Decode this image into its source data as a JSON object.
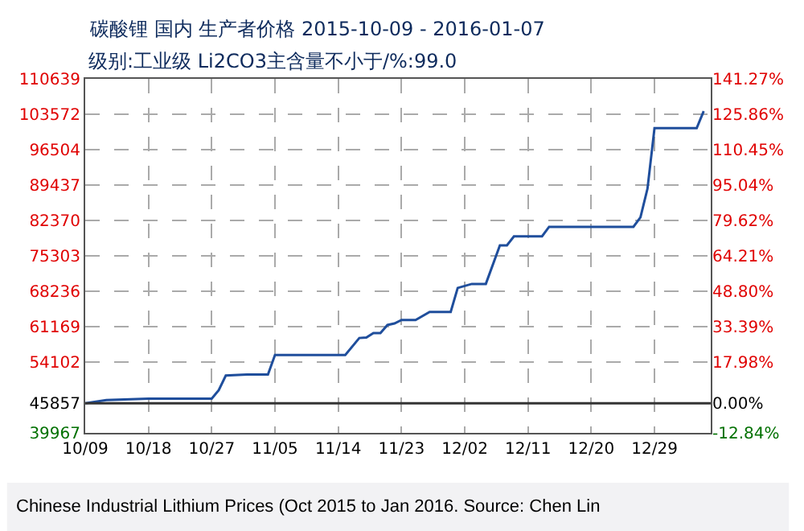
{
  "chart_data": {
    "type": "line",
    "title": "碳酸锂 国内 生产者价格 2015-10-09 - 2016-01-07",
    "subtitle": "级别:工业级 Li2CO3主含量不小于/%:99.0",
    "x": [
      "2015-10-09",
      "2015-10-12",
      "2015-10-18",
      "2015-10-27",
      "2015-10-28",
      "2015-10-29",
      "2015-11-01",
      "2015-11-04",
      "2015-11-05",
      "2015-11-15",
      "2015-11-17",
      "2015-11-18",
      "2015-11-19",
      "2015-11-20",
      "2015-11-21",
      "2015-11-22",
      "2015-11-23",
      "2015-11-25",
      "2015-11-27",
      "2015-11-30",
      "2015-12-01",
      "2015-12-03",
      "2015-12-05",
      "2015-12-07",
      "2015-12-08",
      "2015-12-09",
      "2015-12-13",
      "2015-12-14",
      "2015-12-26",
      "2015-12-27",
      "2015-12-28",
      "2015-12-29",
      "2016-01-04",
      "2016-01-05"
    ],
    "series": [
      {
        "color": "#1f4e9c",
        "values": [
          45857,
          46500,
          46800,
          46800,
          48500,
          51400,
          51600,
          51600,
          55500,
          55500,
          58900,
          59000,
          59900,
          59900,
          61500,
          61800,
          62500,
          62500,
          64100,
          64100,
          68900,
          69700,
          69700,
          77400,
          77400,
          79200,
          79200,
          81100,
          81100,
          83000,
          88700,
          100800,
          100800,
          104200
        ]
      }
    ],
    "xlim": [
      "2015-10-09",
      "2016-01-06"
    ],
    "xticks": [
      {
        "value": "2015-10-09",
        "label": "10/09"
      },
      {
        "value": "2015-10-18",
        "label": "10/18"
      },
      {
        "value": "2015-10-27",
        "label": "10/27"
      },
      {
        "value": "2015-11-05",
        "label": "11/05"
      },
      {
        "value": "2015-11-14",
        "label": "11/14"
      },
      {
        "value": "2015-11-23",
        "label": "11/23"
      },
      {
        "value": "2015-12-02",
        "label": "12/02"
      },
      {
        "value": "2015-12-11",
        "label": "12/11"
      },
      {
        "value": "2015-12-20",
        "label": "12/20"
      },
      {
        "value": "2015-12-29",
        "label": "12/29"
      }
    ],
    "ylim": [
      39967,
      110639
    ],
    "yticks": [
      39967,
      45857,
      54102,
      61169,
      68236,
      75303,
      82370,
      89437,
      96504,
      103572,
      110639
    ],
    "y2lim": [
      -12.84,
      141.27
    ],
    "y2ticks": [
      {
        "value": -12.84,
        "label": "-12.84%"
      },
      {
        "value": 0,
        "label": "0.00%"
      },
      {
        "value": 17.98,
        "label": "17.98%"
      },
      {
        "value": 33.39,
        "label": "33.39%"
      },
      {
        "value": 48.8,
        "label": "48.80%"
      },
      {
        "value": 64.21,
        "label": "64.21%"
      },
      {
        "value": 79.62,
        "label": "79.62%"
      },
      {
        "value": 95.04,
        "label": "95.04%"
      },
      {
        "value": 110.45,
        "label": "110.45%"
      },
      {
        "value": 125.86,
        "label": "125.86%"
      },
      {
        "value": 141.27,
        "label": "141.27%"
      }
    ],
    "ref_lines": [
      {
        "axis": "y",
        "value": 45857,
        "color": "#333333"
      }
    ],
    "grid": true,
    "annotations": [
      "Chinese Industrial Lithium Prices (Oct 2015 to Jan 2016. Source: Chen Lin"
    ]
  }
}
